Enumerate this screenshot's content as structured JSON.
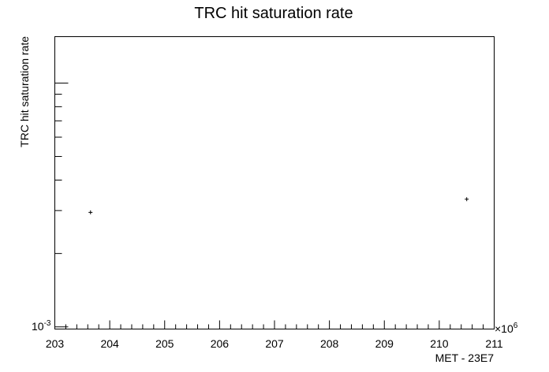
{
  "chart_data": {
    "type": "scatter",
    "title": "TRC hit saturation rate",
    "xlabel": "MET - 23E7",
    "ylabel": "TRC hit saturation rate",
    "x_multiplier_label": "×10",
    "x_multiplier_exponent": "6",
    "xlim": [
      203000000,
      211000000
    ],
    "x_ticks": [
      203000000,
      204000000,
      205000000,
      206000000,
      207000000,
      208000000,
      209000000,
      210000000,
      211000000
    ],
    "x_tick_labels": [
      "203",
      "204",
      "205",
      "206",
      "207",
      "208",
      "209",
      "210",
      "211"
    ],
    "y_scale": "log",
    "ylim": [
      0.00098,
      0.0155
    ],
    "y_tick_label_base": "10",
    "y_tick_label_exponent": "-3",
    "grid": false,
    "series": [
      {
        "points": [
          {
            "x": 203650000,
            "y": 0.00295
          },
          {
            "x": 210500000,
            "y": 0.00334
          }
        ]
      }
    ]
  }
}
